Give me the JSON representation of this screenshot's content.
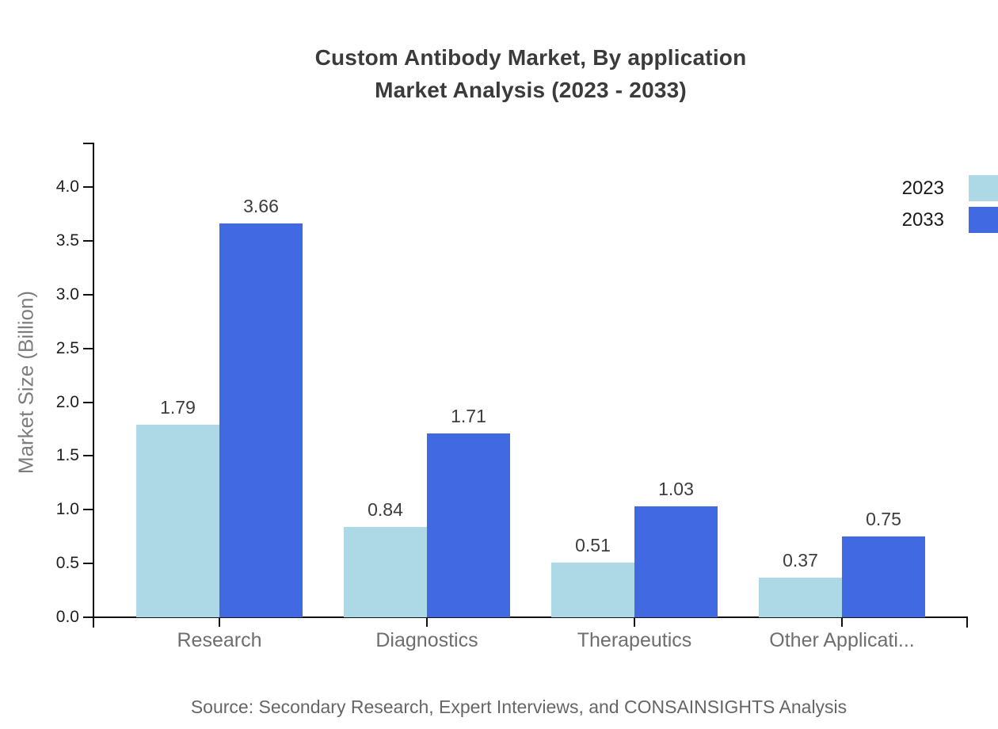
{
  "title": {
    "line1": "Custom Antibody Market, By application",
    "line2": "Market Analysis (2023 - 2033)"
  },
  "source": "Source: Secondary Research, Expert Interviews, and CONSAINSIGHTS Analysis",
  "chart_data": {
    "type": "bar",
    "title": "Custom Antibody Market, By application Market Analysis (2023 - 2033)",
    "categories": [
      "Research",
      "Diagnostics",
      "Therapeutics",
      "Other Applicati..."
    ],
    "series": [
      {
        "name": "2023",
        "color": "#ADD8E6",
        "values": [
          1.79,
          0.84,
          0.51,
          0.37
        ]
      },
      {
        "name": "2033",
        "color": "#4169E1",
        "values": [
          3.66,
          1.71,
          1.03,
          0.75
        ]
      }
    ],
    "xlabel": "",
    "ylabel": "Market Size (Billion)",
    "ylim": [
      0,
      4.41
    ],
    "yticks": [
      0.0,
      0.5,
      1.0,
      1.5,
      2.0,
      2.5,
      3.0,
      3.5,
      4.0
    ],
    "grid": false,
    "legend_position": "top-right",
    "bar_value_labels": true,
    "axis_color": "#111111"
  }
}
